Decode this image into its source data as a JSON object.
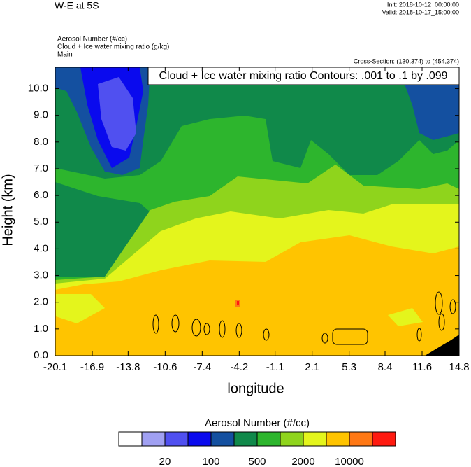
{
  "chart_data": {
    "type": "contour",
    "title": "W-E at 5S",
    "init": "Init: 2018-10-12_00:00:00",
    "valid": "Valid: 2018-10-17_15:00:00",
    "fields": [
      "Aerosol Number   (#/cc)",
      "Cloud + Ice water mixing ratio   (g/kg)",
      "Main"
    ],
    "cross_section": "Cross-Section: (130,374) to (454,374)",
    "contour_label": "Cloud + Ice water mixing ratio Contours: .001 to .1 by .099",
    "x_label": "longitude",
    "y_label": "Height (km)",
    "xlim": [
      -20.1,
      14.8
    ],
    "xticks": [
      -20.1,
      -16.9,
      -13.8,
      -10.6,
      -7.4,
      -4.2,
      -1.1,
      2.1,
      5.3,
      8.4,
      11.6,
      14.8
    ],
    "ylim": [
      0,
      10.8
    ],
    "yticks": [
      {
        "value": 0,
        "label": "0.0"
      },
      {
        "value": 1,
        "label": "1.0"
      },
      {
        "value": 2,
        "label": "2.0"
      },
      {
        "value": 3,
        "label": "3.0"
      },
      {
        "value": 4,
        "label": "4.0"
      },
      {
        "value": 5,
        "label": "5.0"
      },
      {
        "value": 6,
        "label": "6.0"
      },
      {
        "value": 7,
        "label": "7.0"
      },
      {
        "value": 8,
        "label": "8.0"
      },
      {
        "value": 9,
        "label": "9.0"
      },
      {
        "value": 10,
        "label": "10.0"
      }
    ],
    "colorbar_title": "Aerosol Number  (#/cc)",
    "colors": [
      "#ffffff",
      "#a0a0f2",
      "#5050f0",
      "#0a0aee",
      "#1450a0",
      "#10894a",
      "#2db52d",
      "#8fd41c",
      "#e4f51c",
      "#ffc400",
      "#ff7814",
      "#ff1a10"
    ],
    "colorbar_labels": [
      20,
      100,
      500,
      2000,
      10000
    ]
  }
}
